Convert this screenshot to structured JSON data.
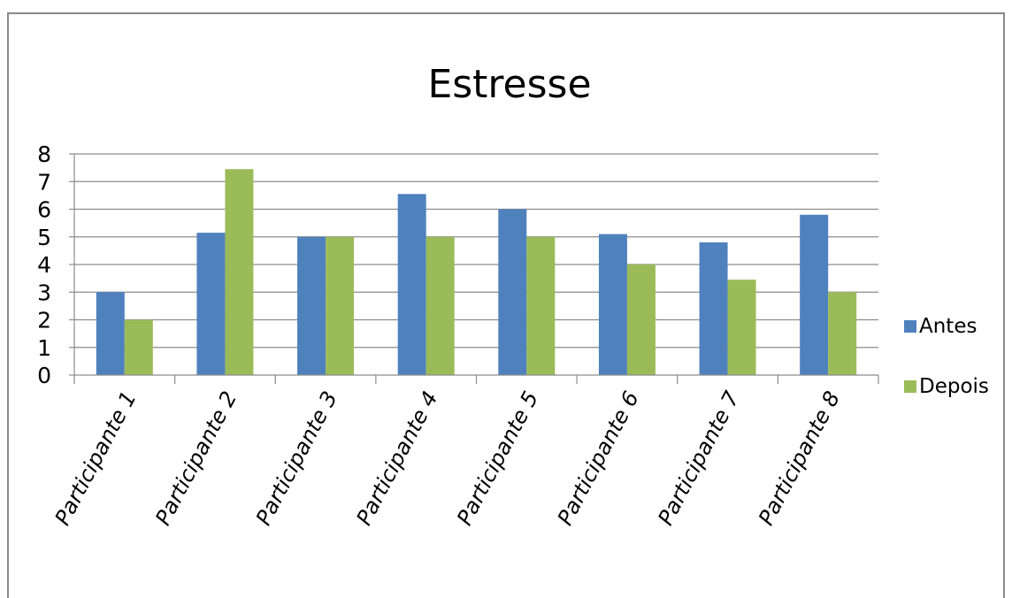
{
  "chart_data": {
    "type": "bar",
    "title": "Estresse",
    "categories": [
      "Participante 1",
      "Participante 2",
      "Participante 3",
      "Participante 4",
      "Participante 5",
      "Participante 6",
      "Participante 7",
      "Participante 8"
    ],
    "series": [
      {
        "name": "Antes",
        "color": "#4F81BD",
        "values": [
          3,
          5.15,
          5,
          6.55,
          6,
          5.1,
          4.8,
          5.8
        ]
      },
      {
        "name": "Depois",
        "color": "#9BBB59",
        "values": [
          2,
          7.45,
          5,
          5,
          5,
          4,
          3.45,
          3
        ]
      }
    ],
    "yticks": [
      "0",
      "1",
      "2",
      "3",
      "4",
      "5",
      "6",
      "7",
      "8"
    ],
    "ylim": [
      0,
      8
    ],
    "grid": true,
    "legend": "right"
  }
}
